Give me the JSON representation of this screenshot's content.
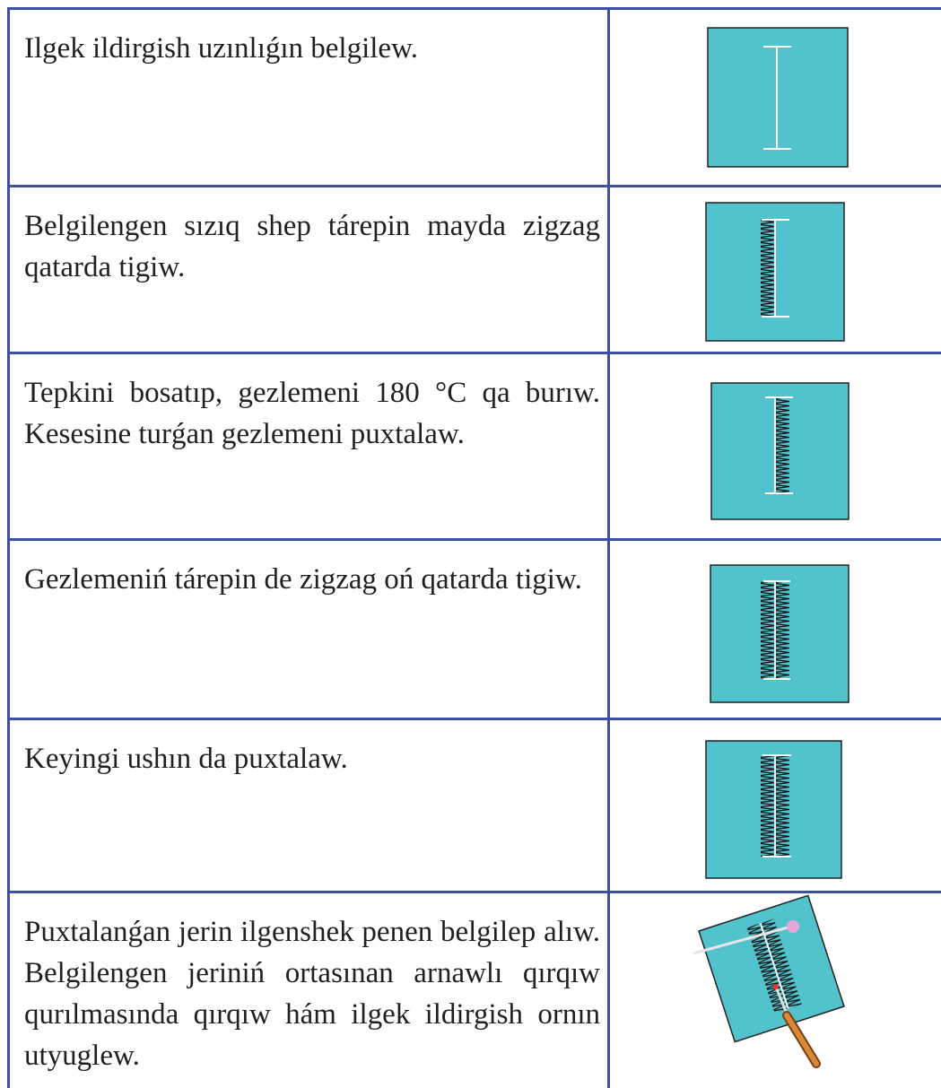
{
  "table": {
    "rows": [
      {
        "text": "Ilgek ildirgish uzınlıǵın belgilew."
      },
      {
        "text": "Belgilengen sızıq shep tárepin mayda zigzag qatarda tigiw."
      },
      {
        "text": "Tepkini bosatıp, gezlemeni 180 °C qa burıw. Kesesine turǵan gezlemeni puxtalaw."
      },
      {
        "text": "Gezlemeniń tárepin de zigzag oń qatarda tigiw."
      },
      {
        "text": "Keyingi ushın da puxtalaw."
      },
      {
        "text": "Puxtalanǵan jerin ilgenshek penen belgilep alıw. Belgilengen jeriniń ortasınan arnawlı qırqıw qurılmasında qırqıw hám ilgek ildirgish ornın utyuglew."
      }
    ]
  }
}
